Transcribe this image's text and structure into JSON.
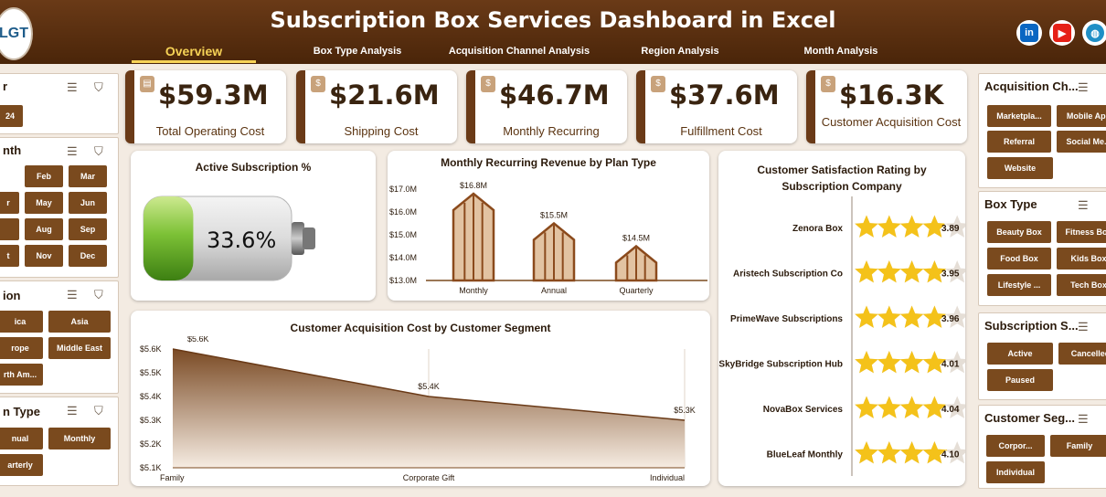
{
  "header": {
    "title": "Subscription Box Services Dashboard in Excel",
    "logo_text": "LGT"
  },
  "nav": {
    "tabs": [
      "Overview",
      "Box Type Analysis",
      "Acquisition Channel Analysis",
      "Region Analysis",
      "Month Analysis"
    ]
  },
  "social": {
    "linkedin": "in",
    "youtube": "▶",
    "web": "◍"
  },
  "kpis": [
    {
      "value": "$59.3M",
      "label": "Total Operating Cost",
      "icon": "📋"
    },
    {
      "value": "$21.6M",
      "label": "Shipping Cost",
      "icon": "💰"
    },
    {
      "value": "$46.7M",
      "label": "Monthly Recurring",
      "icon": "💲"
    },
    {
      "value": "$37.6M",
      "label": "Fulfillment Cost",
      "icon": "💰"
    },
    {
      "value": "$16.3K",
      "label": "Customer Acquisition Cost",
      "icon": "💰"
    }
  ],
  "active_subscription": {
    "title": "Active Subscription %",
    "value": "33.6%",
    "fraction": 0.336
  },
  "slicers": {
    "year": {
      "header": "r",
      "items": [
        "24"
      ]
    },
    "month": {
      "header": "nth",
      "items": [
        "Feb",
        "Mar",
        "r",
        "May",
        "Jun",
        "Aug",
        "Sep",
        "t",
        "Nov",
        "Dec"
      ]
    },
    "region": {
      "header": "ion",
      "items": [
        "ica",
        "Asia",
        "rope",
        "Middle East",
        "rth Am..."
      ]
    },
    "plan_type": {
      "header": "n Type",
      "items": [
        "nual",
        "Monthly",
        "arterly"
      ]
    },
    "acquisition": {
      "header": "Acquisition Ch...",
      "items": [
        "Marketpla...",
        "Mobile App",
        "Referral",
        "Social Me...",
        "Website"
      ]
    },
    "box_type": {
      "header": "Box Type",
      "items": [
        "Beauty Box",
        "Fitness Box",
        "Food Box",
        "Kids Box",
        "Lifestyle ...",
        "Tech Box"
      ]
    },
    "status": {
      "header": "Subscription S...",
      "items": [
        "Active",
        "Cancelled",
        "Paused"
      ]
    },
    "segment": {
      "header": "Customer Seg...",
      "items": [
        "Corpor...",
        "Family",
        "Individual"
      ]
    }
  },
  "chart_data": [
    {
      "type": "bar",
      "title": "Monthly Recurring Revenue by Plan Type",
      "categories": [
        "Monthly",
        "Annual",
        "Quarterly"
      ],
      "values": [
        16.8,
        15.5,
        14.5
      ],
      "labels": [
        "$16.8M",
        "$15.5M",
        "$14.5M"
      ],
      "ylim": [
        13,
        17
      ],
      "yticks": [
        "$17.0M",
        "$16.0M",
        "$15.0M",
        "$14.0M",
        "$13.0M"
      ]
    },
    {
      "type": "area",
      "title": "Customer Acquisition Cost by Customer Segment",
      "categories": [
        "Family",
        "Corporate Gift",
        "Individual"
      ],
      "values": [
        5.6,
        5.4,
        5.3
      ],
      "labels": [
        "$5.6K",
        "$5.4K",
        "$5.3K"
      ],
      "ylim": [
        5.1,
        5.6
      ],
      "yticks": [
        "$5.6K",
        "$5.5K",
        "$5.4K",
        "$5.3K",
        "$5.2K",
        "$5.1K"
      ]
    },
    {
      "type": "bar",
      "title": "Customer Satisfaction Rating by Subscription Company",
      "categories": [
        "Zenora Box",
        "Aristech Subscription Co",
        "PrimeWave Subscriptions",
        "SkyBridge Subscription Hub",
        "NovaBox Services",
        "BlueLeaf Monthly"
      ],
      "values": [
        3.89,
        3.95,
        3.96,
        4.01,
        4.04,
        4.1
      ],
      "labels": [
        "3.89",
        "3.95",
        "3.96",
        "4.01",
        "4.04",
        "4.10"
      ],
      "xlim": [
        0,
        5
      ]
    }
  ]
}
